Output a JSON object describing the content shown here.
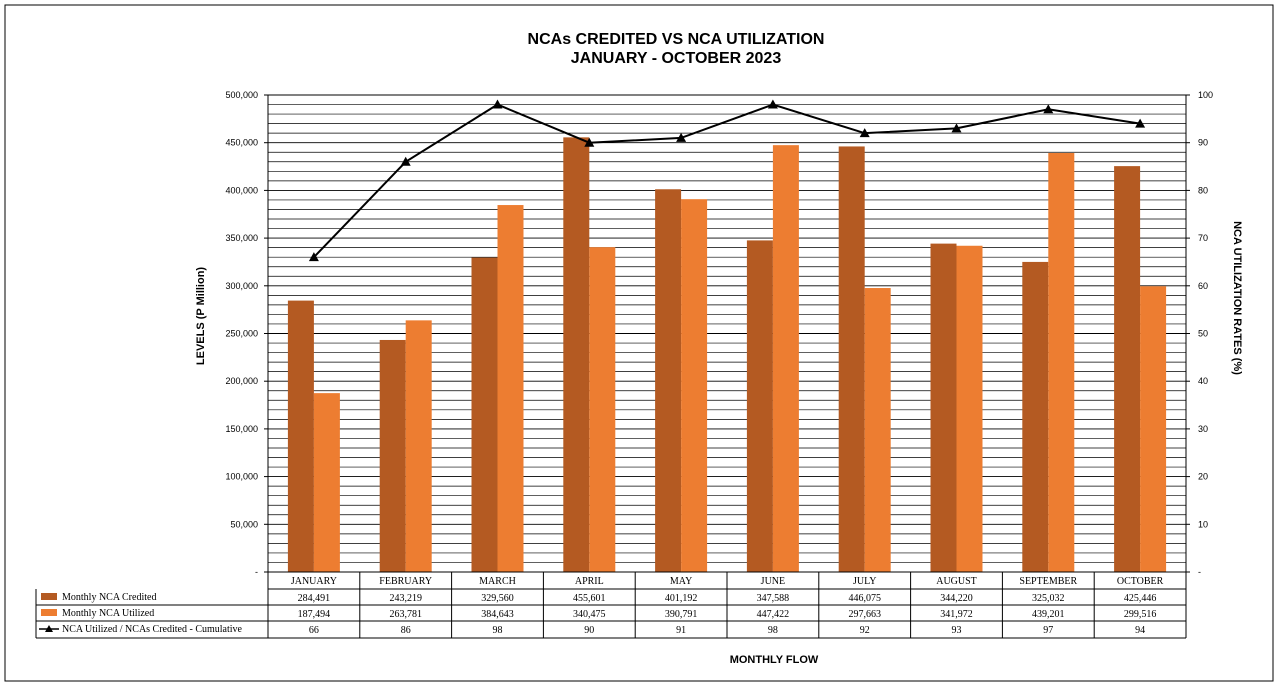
{
  "chart_data": {
    "type": "bar",
    "title": "NCAs CREDITED VS NCA UTILIZATION",
    "subtitle": "JANUARY - OCTOBER 2023",
    "xlabel": "MONTHLY FLOW",
    "ylabel": "LEVELS (P Million)",
    "y2label": "NCA UTILIZATION RATES (%)",
    "ylim": [
      0,
      500000
    ],
    "y2lim": [
      0,
      100
    ],
    "y_ticks": [
      "-",
      "50,000",
      "100,000",
      "150,000",
      "200,000",
      "250,000",
      "300,000",
      "350,000",
      "400,000",
      "450,000",
      "500,000"
    ],
    "y2_ticks": [
      "-",
      "10",
      "20",
      "30",
      "40",
      "50",
      "60",
      "70",
      "80",
      "90",
      "100"
    ],
    "grid": true,
    "categories": [
      "JANUARY",
      "FEBRUARY",
      "MARCH",
      "APRIL",
      "MAY",
      "JUNE",
      "JULY",
      "AUGUST",
      "SEPTEMBER",
      "OCTOBER"
    ],
    "series": [
      {
        "name": "Monthly NCA Credited",
        "type": "bar",
        "color": "#B45A22",
        "values": [
          284491,
          243219,
          329560,
          455601,
          401192,
          347588,
          446075,
          344220,
          325032,
          425446
        ],
        "labels": [
          "284,491",
          "243,219",
          "329,560",
          "455,601",
          "401,192",
          "347,588",
          "446,075",
          "344,220",
          "325,032",
          "425,446"
        ]
      },
      {
        "name": "Monthly NCA Utilized",
        "type": "bar",
        "color": "#ED7D31",
        "values": [
          187494,
          263781,
          384643,
          340475,
          390791,
          447422,
          297663,
          341972,
          439201,
          299516
        ],
        "labels": [
          "187,494",
          "263,781",
          "384,643",
          "340,475",
          "390,791",
          "447,422",
          "297,663",
          "341,972",
          "439,201",
          "299,516"
        ]
      },
      {
        "name": "NCA Utilized / NCAs Credited - Cumulative",
        "type": "line",
        "axis": "secondary",
        "color": "#000000",
        "values": [
          66,
          86,
          98,
          90,
          91,
          98,
          92,
          93,
          97,
          94
        ],
        "labels": [
          "66",
          "86",
          "98",
          "90",
          "91",
          "98",
          "92",
          "93",
          "97",
          "94"
        ]
      }
    ]
  }
}
